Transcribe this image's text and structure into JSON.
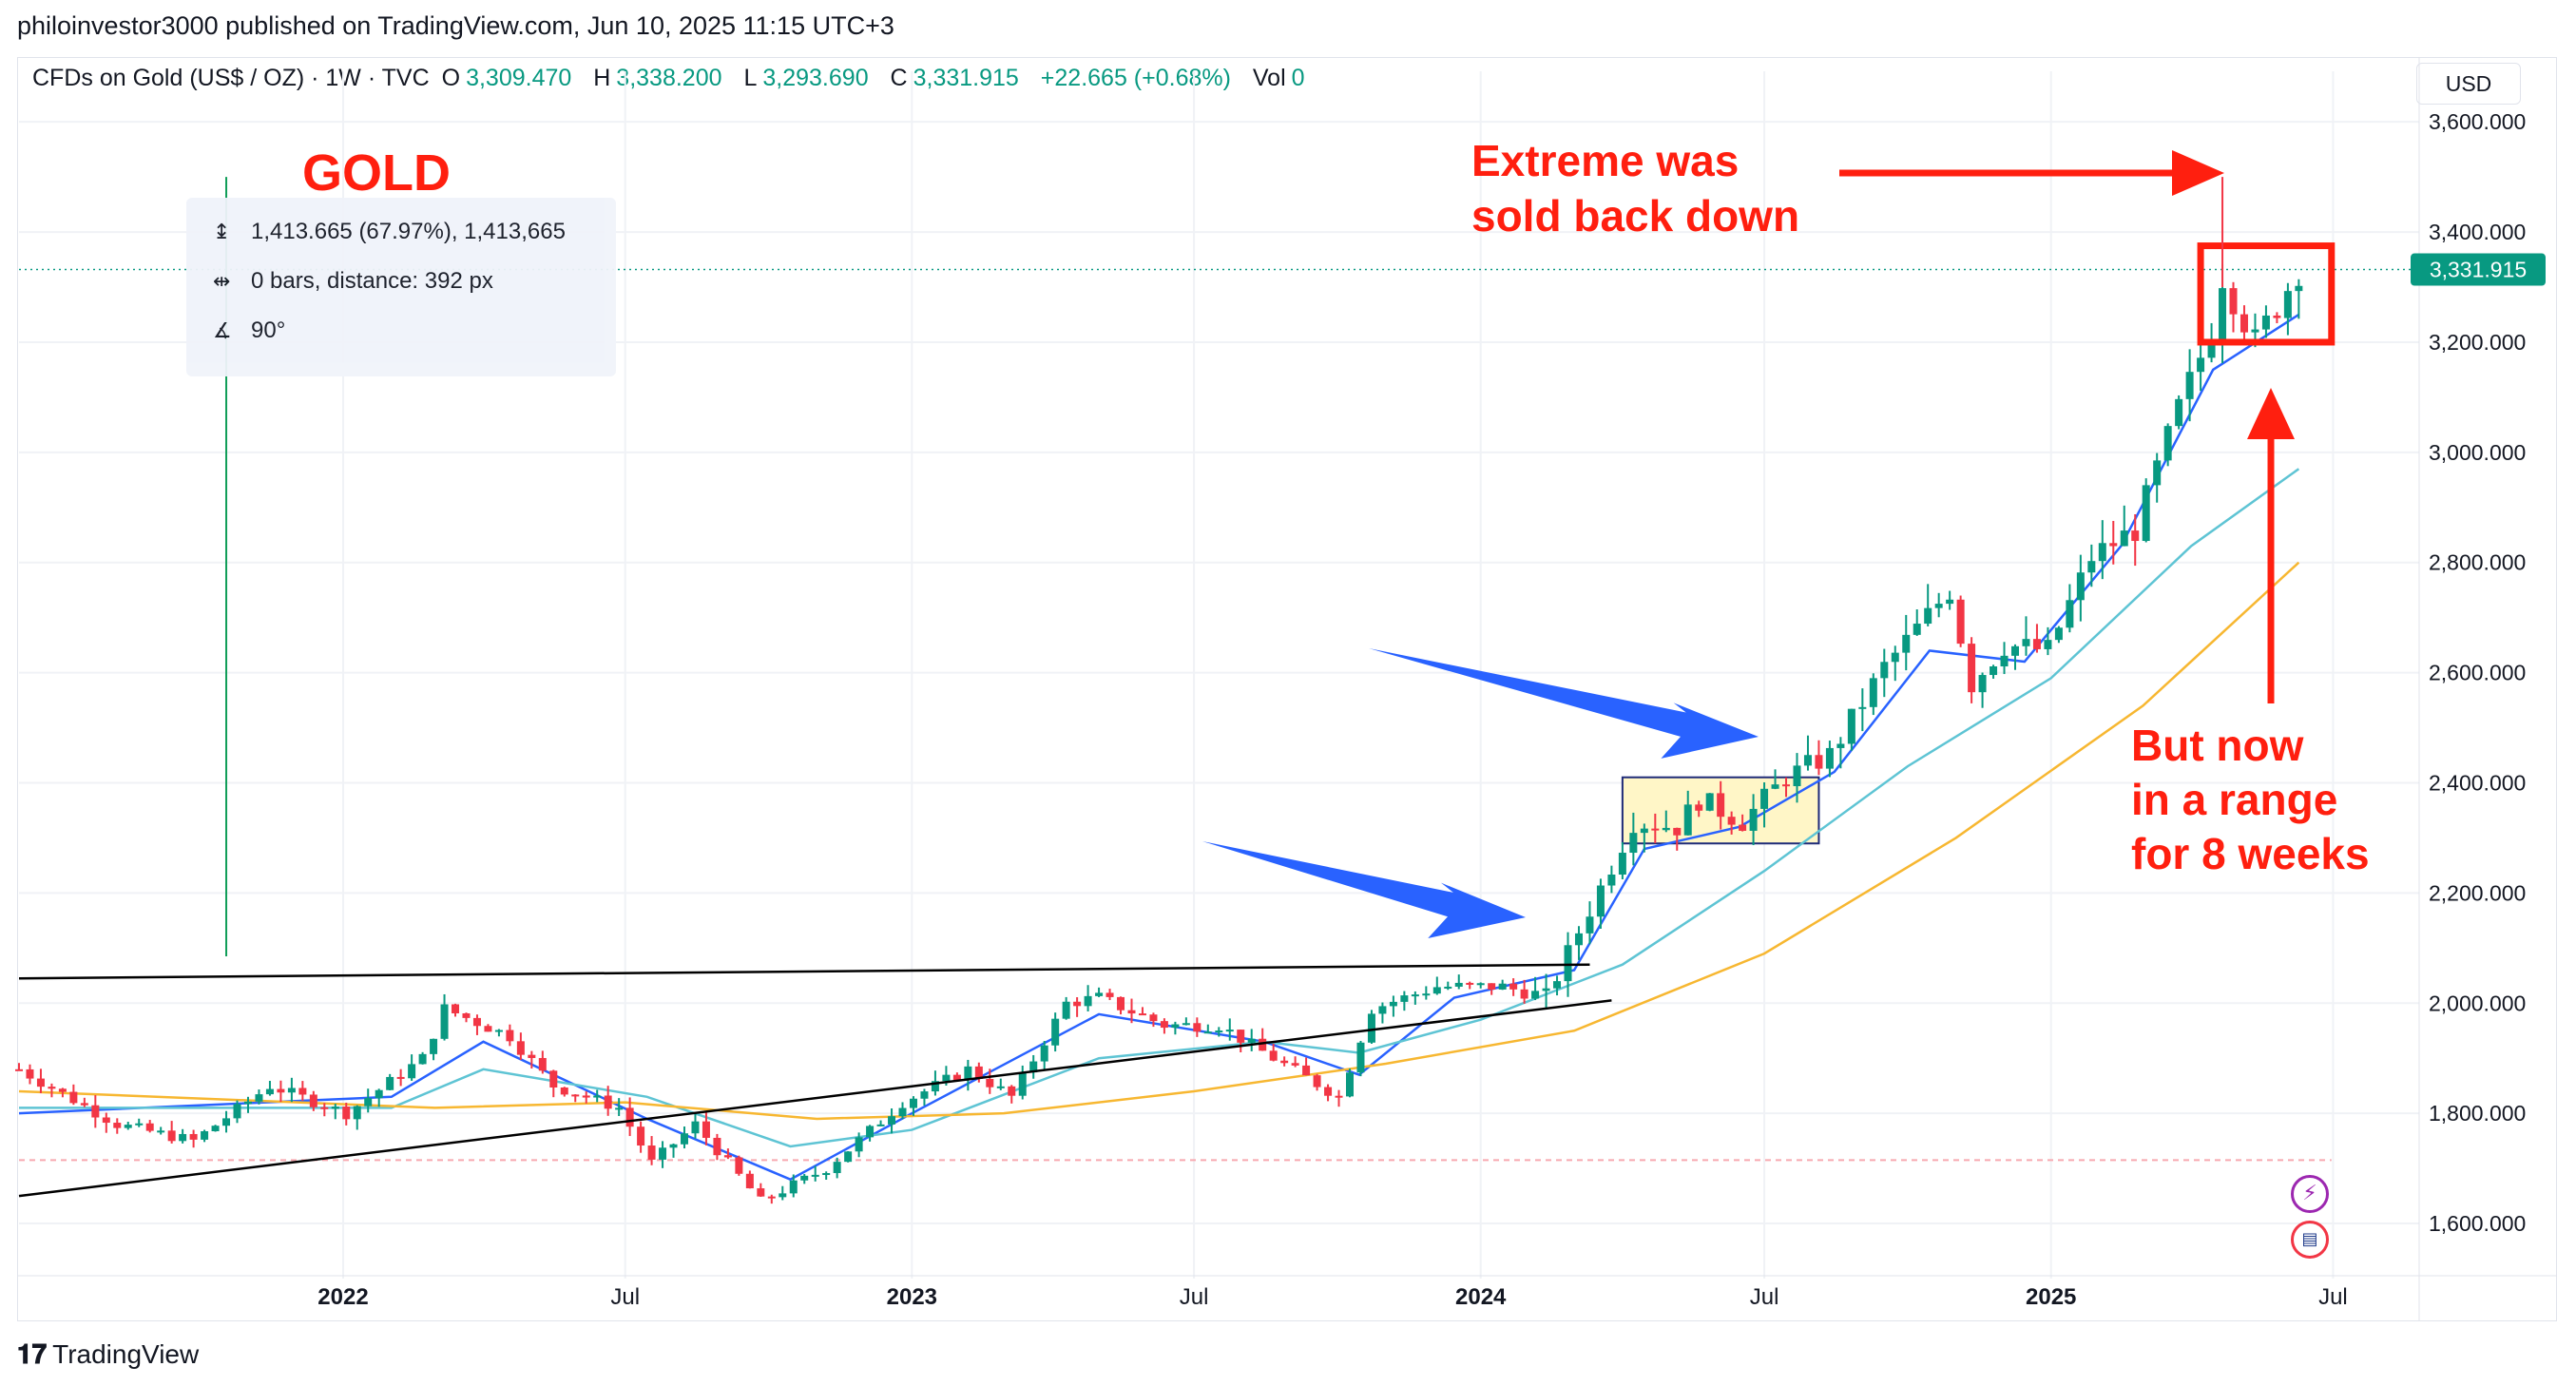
{
  "header": {
    "attribution": "philoinvestor3000 published on TradingView.com, Jun 10, 2025 11:15 UTC+3"
  },
  "legend": {
    "symbol": "CFDs on Gold (US$ / OZ) · 1W · TVC",
    "open_label": "O",
    "open": "3,309.470",
    "high_label": "H",
    "high": "3,338.200",
    "low_label": "L",
    "low": "3,293.690",
    "close_label": "C",
    "close": "3,331.915",
    "change": "+22.665 (+0.68%)",
    "vol_label": "Vol",
    "vol": "0"
  },
  "currency_button": "USD",
  "measure_tool": {
    "row1": "1,413.665 (67.97%), 1,413,665",
    "row2": "0 bars, distance: 392 px",
    "row3": "90°",
    "icons": [
      "price-range-icon",
      "bar-range-icon",
      "angle-icon"
    ]
  },
  "footer": {
    "brand": "TradingView",
    "logo_glyph": "𝟏𝟕"
  },
  "side_icons": [
    "lightning-icon",
    "us-flag-icon"
  ],
  "colors": {
    "up": "#089981",
    "down": "#f23645",
    "ema_fast": "#2962ff",
    "ema_mid": "#5ec4d4",
    "ema_slow": "#f7b731",
    "annotation_red": "#ff1f0f",
    "arrow_blue": "#2962ff",
    "box_fill": "#fff6c7",
    "last_price": "#089981"
  },
  "chart_data": {
    "type": "candlestick",
    "title": "GOLD",
    "timeframe": "1W",
    "y_axis": {
      "ticks": [
        1600,
        1800,
        2000,
        2200,
        2400,
        2600,
        2800,
        3000,
        3200,
        3400,
        3600
      ],
      "tick_labels": [
        "1,600.000",
        "1,800.000",
        "2,000.000",
        "2,200.000",
        "2,400.000",
        "2,600.000",
        "2,800.000",
        "3,000.000",
        "3,200.000",
        "3,400.000",
        "3,600.000"
      ],
      "range": [
        1500,
        3640
      ]
    },
    "x_axis": {
      "range": [
        "2021-06-07",
        "2025-08-10"
      ],
      "ticks": [
        {
          "label": "2022",
          "date": "2022-01-01",
          "bold": true
        },
        {
          "label": "Jul",
          "date": "2022-07-01",
          "bold": false
        },
        {
          "label": "2023",
          "date": "2023-01-01",
          "bold": true
        },
        {
          "label": "Jul",
          "date": "2023-07-01",
          "bold": false
        },
        {
          "label": "2024",
          "date": "2024-01-01",
          "bold": true
        },
        {
          "label": "Jul",
          "date": "2024-07-01",
          "bold": false
        },
        {
          "label": "2025",
          "date": "2025-01-01",
          "bold": true
        },
        {
          "label": "Jul",
          "date": "2025-07-01",
          "bold": false
        }
      ]
    },
    "last_price": {
      "value": 3331.915,
      "label": "3,331.915"
    },
    "close_anchors": [
      [
        "2021-06-07",
        1880
      ],
      [
        "2021-08-09",
        1780
      ],
      [
        "2021-09-27",
        1750
      ],
      [
        "2021-11-15",
        1850
      ],
      [
        "2022-01-03",
        1800
      ],
      [
        "2022-02-21",
        1900
      ],
      [
        "2022-03-07",
        1990
      ],
      [
        "2022-04-18",
        1940
      ],
      [
        "2022-05-16",
        1850
      ],
      [
        "2022-06-27",
        1810
      ],
      [
        "2022-07-18",
        1710
      ],
      [
        "2022-08-15",
        1780
      ],
      [
        "2022-09-26",
        1640
      ],
      [
        "2022-11-07",
        1700
      ],
      [
        "2022-12-26",
        1820
      ],
      [
        "2023-02-06",
        1880
      ],
      [
        "2023-03-06",
        1830
      ],
      [
        "2023-04-10",
        2000
      ],
      [
        "2023-05-01",
        2010
      ],
      [
        "2023-06-12",
        1960
      ],
      [
        "2023-07-17",
        1960
      ],
      [
        "2023-08-21",
        1900
      ],
      [
        "2023-10-02",
        1830
      ],
      [
        "2023-10-23",
        1990
      ],
      [
        "2023-12-04",
        2030
      ],
      [
        "2024-01-15",
        2030
      ],
      [
        "2024-02-12",
        2010
      ],
      [
        "2024-03-11",
        2170
      ],
      [
        "2024-04-08",
        2330
      ],
      [
        "2024-05-06",
        2320
      ],
      [
        "2024-05-20",
        2370
      ],
      [
        "2024-06-17",
        2330
      ],
      [
        "2024-07-15",
        2410
      ],
      [
        "2024-08-12",
        2450
      ],
      [
        "2024-09-16",
        2610
      ],
      [
        "2024-10-28",
        2750
      ],
      [
        "2024-11-11",
        2580
      ],
      [
        "2024-12-02",
        2650
      ],
      [
        "2024-12-30",
        2640
      ],
      [
        "2025-01-27",
        2810
      ],
      [
        "2025-02-24",
        2860
      ],
      [
        "2025-03-24",
        3080
      ],
      [
        "2025-04-14",
        3220
      ],
      [
        "2025-04-21",
        3320
      ],
      [
        "2025-05-12",
        3200
      ],
      [
        "2025-06-09",
        3331.915
      ]
    ],
    "emas": [
      {
        "color": "#2962ff",
        "points": [
          [
            "2021-06-07",
            1800
          ],
          [
            "2022-02-01",
            1830
          ],
          [
            "2022-04-01",
            1930
          ],
          [
            "2022-07-15",
            1790
          ],
          [
            "2022-10-15",
            1680
          ],
          [
            "2023-01-01",
            1800
          ],
          [
            "2023-05-01",
            1980
          ],
          [
            "2023-08-15",
            1930
          ],
          [
            "2023-10-15",
            1870
          ],
          [
            "2023-12-15",
            2010
          ],
          [
            "2024-03-01",
            2060
          ],
          [
            "2024-04-15",
            2280
          ],
          [
            "2024-06-15",
            2320
          ],
          [
            "2024-08-15",
            2420
          ],
          [
            "2024-10-15",
            2640
          ],
          [
            "2024-12-15",
            2620
          ],
          [
            "2025-02-15",
            2830
          ],
          [
            "2025-04-15",
            3150
          ],
          [
            "2025-06-09",
            3250
          ]
        ]
      },
      {
        "color": "#5ec4d4",
        "points": [
          [
            "2021-06-07",
            1810
          ],
          [
            "2022-02-01",
            1810
          ],
          [
            "2022-04-01",
            1880
          ],
          [
            "2022-07-15",
            1830
          ],
          [
            "2022-10-15",
            1740
          ],
          [
            "2023-01-01",
            1770
          ],
          [
            "2023-05-01",
            1900
          ],
          [
            "2023-08-15",
            1930
          ],
          [
            "2023-10-15",
            1910
          ],
          [
            "2024-01-01",
            1970
          ],
          [
            "2024-04-01",
            2070
          ],
          [
            "2024-07-01",
            2240
          ],
          [
            "2024-10-01",
            2430
          ],
          [
            "2025-01-01",
            2590
          ],
          [
            "2025-04-01",
            2830
          ],
          [
            "2025-06-09",
            2970
          ]
        ]
      },
      {
        "color": "#f7b731",
        "points": [
          [
            "2021-06-07",
            1840
          ],
          [
            "2022-03-01",
            1810
          ],
          [
            "2022-07-01",
            1820
          ],
          [
            "2022-11-01",
            1790
          ],
          [
            "2023-03-01",
            1800
          ],
          [
            "2023-07-01",
            1840
          ],
          [
            "2023-11-01",
            1890
          ],
          [
            "2024-03-01",
            1950
          ],
          [
            "2024-07-01",
            2090
          ],
          [
            "2024-11-01",
            2300
          ],
          [
            "2025-03-01",
            2540
          ],
          [
            "2025-06-09",
            2800
          ]
        ]
      }
    ],
    "trendlines": [
      {
        "color": "#000000",
        "from": [
          "2021-06-07",
          2045
        ],
        "to": [
          "2024-03-11",
          2070
        ]
      },
      {
        "color": "#000000",
        "from": [
          "2021-06-07",
          1650
        ],
        "to": [
          "2024-03-25",
          2005
        ]
      }
    ],
    "dashed_level": {
      "value": 1715,
      "color": "#f7a9b0"
    },
    "vertical_line": {
      "date": "2021-10-18",
      "from": 2085,
      "to": 3500,
      "color": "#0f9d58"
    },
    "range_box_2024": {
      "from": "2024-04-01",
      "to": "2024-08-05",
      "low": 2290,
      "high": 2410
    },
    "range_box_2025": {
      "from": "2025-04-07",
      "to": "2025-06-30",
      "low": 3200,
      "high": 3375
    },
    "annotations": [
      {
        "text": "GOLD",
        "color": "#ff1f0f"
      },
      {
        "lines": [
          "Extreme was",
          "sold back down"
        ],
        "color": "#ff1f0f"
      },
      {
        "lines": [
          "But now",
          "in a range",
          "for 8 weeks"
        ],
        "color": "#ff1f0f"
      }
    ]
  }
}
